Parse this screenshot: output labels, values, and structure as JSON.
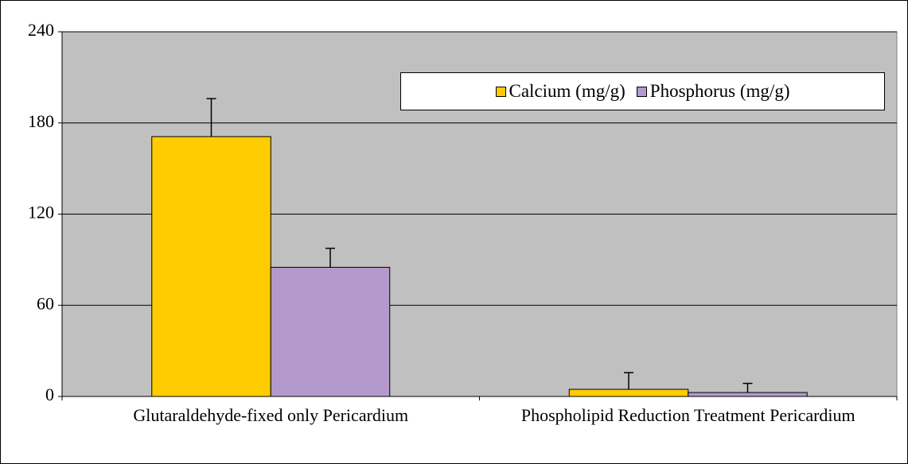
{
  "chart_data": {
    "type": "bar",
    "categories": [
      "Glutaraldehyde-fixed only Pericardium",
      "Phospholipid Reduction Treatment Pericardium"
    ],
    "series": [
      {
        "name": "Calcium (mg/g)",
        "color": "#ffcc00",
        "values": [
          171,
          4.7
        ],
        "errors": [
          25,
          11
        ]
      },
      {
        "name": "Phosphorus (mg/g)",
        "color": "#b399cc",
        "values": [
          85,
          2.6
        ],
        "errors": [
          12.5,
          6
        ]
      }
    ],
    "ylim": [
      0,
      240
    ],
    "yticks": [
      0,
      60,
      120,
      180,
      240
    ],
    "grid": true,
    "legend": "top-right"
  }
}
